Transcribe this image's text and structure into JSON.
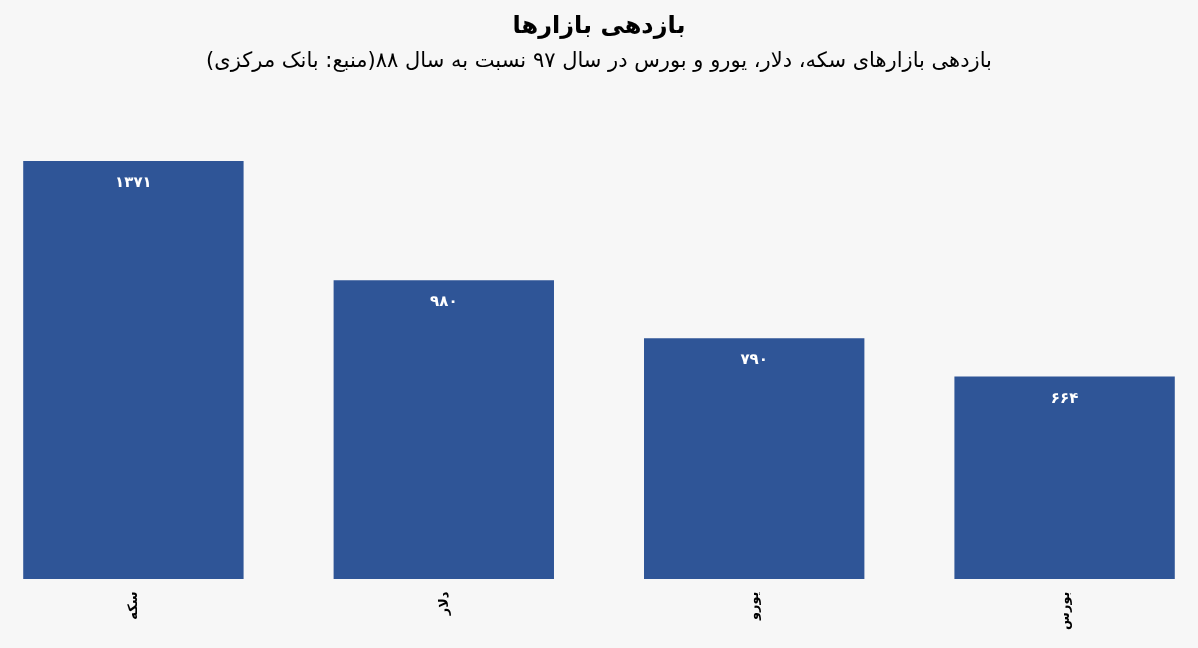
{
  "chart_data": {
    "type": "bar",
    "title": "بازدهی بازارها",
    "subtitle": "بازدهی بازارهای سکه، دلار، یورو و بورس در سال ۹۷ نسبت به سال ۸۸(منبع: بانک مرکزی)",
    "categories": [
      "سکه",
      "دلار",
      "یورو",
      "بورس"
    ],
    "values": [
      1371,
      980,
      790,
      664
    ],
    "value_labels": [
      "۱۳۷۱",
      "۹۸۰",
      "۷۹۰",
      "۶۶۴"
    ],
    "color": "#2f5597"
  }
}
